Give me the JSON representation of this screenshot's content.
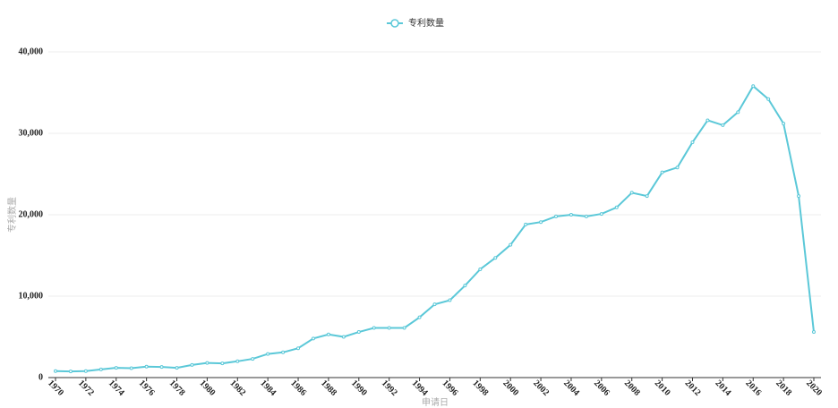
{
  "chart_data": {
    "type": "line",
    "legend_position": "top",
    "x_label": "申请日",
    "y_label": "专利数量",
    "x": [
      1970,
      1971,
      1972,
      1973,
      1974,
      1975,
      1976,
      1977,
      1978,
      1979,
      1980,
      1981,
      1982,
      1983,
      1984,
      1985,
      1986,
      1987,
      1988,
      1989,
      1990,
      1991,
      1992,
      1993,
      1994,
      1995,
      1996,
      1997,
      1998,
      1999,
      2000,
      2001,
      2002,
      2003,
      2004,
      2005,
      2006,
      2007,
      2008,
      2009,
      2010,
      2011,
      2012,
      2013,
      2014,
      2015,
      2016,
      2017,
      2018,
      2019,
      2020
    ],
    "series": [
      {
        "name": "专利数量",
        "color": "#5bc8d8",
        "values": [
          800,
          750,
          800,
          1000,
          1200,
          1150,
          1350,
          1300,
          1200,
          1550,
          1800,
          1750,
          2000,
          2300,
          2900,
          3100,
          3600,
          4800,
          5300,
          5000,
          5600,
          6100,
          6100,
          6100,
          7400,
          9000,
          9500,
          11300,
          13300,
          14700,
          16300,
          18800,
          19100,
          19800,
          20000,
          19800,
          20100,
          20900,
          22700,
          22300,
          25200,
          25800,
          28900,
          31600,
          31000,
          32600,
          35800,
          34200,
          31200,
          22300,
          5600
        ]
      }
    ],
    "xlim": [
      1970,
      2020
    ],
    "xticks": [
      1970,
      1972,
      1974,
      1976,
      1978,
      1980,
      1982,
      1984,
      1986,
      1988,
      1990,
      1992,
      1994,
      1996,
      1998,
      2000,
      2002,
      2004,
      2006,
      2008,
      2010,
      2012,
      2014,
      2016,
      2018,
      2020
    ],
    "ylim": [
      0,
      40000
    ],
    "yticks": [
      0,
      {
        "value": 10000,
        "label": "10,000"
      },
      {
        "value": 20000,
        "label": "20,000"
      },
      {
        "value": 30000,
        "label": "30,000"
      },
      {
        "value": 40000,
        "label": "40,000"
      }
    ],
    "grid": true
  }
}
